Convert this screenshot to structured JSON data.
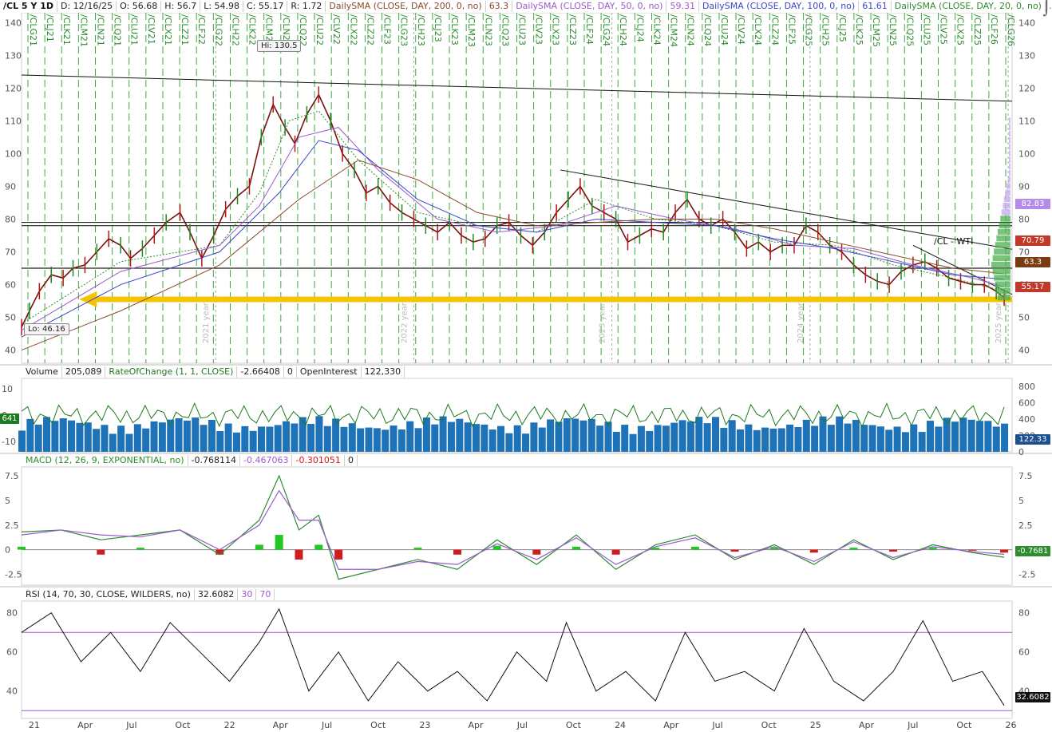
{
  "header": {
    "symbol": "/CL 5 Y 1D",
    "date": "D: 12/16/25",
    "open": "O: 56.68",
    "high": "H: 56.7",
    "low": "L: 54.98",
    "close": "C: 55.17",
    "range": "R: 1.72",
    "sma200_label": "DailySMA (CLOSE, DAY, 200, 0, no)",
    "sma200_value": "63.3",
    "sma50_label": "DailySMA (CLOSE, DAY, 50, 0, no)",
    "sma50_value": "59.31",
    "sma100_label": "DailySMA (CLOSE, DAY, 100, 0, no)",
    "sma100_value": "61.61",
    "sma20_label": "DailySMA (CLOSE, DAY, 20, 0, no)",
    "sma20_value": "...",
    "colors": {
      "sma200": "#8b4a2b",
      "sma50": "#9b59d0",
      "sma100": "#3a47c8",
      "sma20": "#2e8b2e"
    }
  },
  "volume_header": {
    "volume_label": "Volume",
    "volume_value": "205,089",
    "roc_label": "RateOfChange (1, 1, CLOSE)",
    "roc_value": "-2.66408",
    "roc_zero": "0",
    "oi_label": "OpenInterest",
    "oi_value": "122,330"
  },
  "macd_header": {
    "label": "MACD (12, 26, 9, EXPONENTIAL, no)",
    "value": "-0.768114",
    "avg": "-0.467063",
    "diff": "-0.301051",
    "zero": "0"
  },
  "rsi_header": {
    "label": "RSI (14, 70, 30, CLOSE, WILDERS, no)",
    "value": "32.6082",
    "os": "30",
    "ob": "70"
  },
  "annotations": {
    "hi": "Hi: 130.5",
    "lo": "Lo: 46.16",
    "trend_label": "/CL - WTI"
  },
  "price_tags": {
    "p1": "82.83",
    "p2": "70.79",
    "p3": "63.3",
    "p4": "55.17",
    "vol_tag": "122.33",
    "roc_tag": "641",
    "macd_tag": "-0.7681",
    "rsi_tag": "32.6082",
    "colors": {
      "p1": "#b58be8",
      "p2": "#c0392b",
      "p3": "#7a3b12",
      "p4": "#c0392b"
    }
  },
  "chart_data": [
    {
      "type": "line",
      "pane": "price",
      "ylim": [
        36,
        143
      ],
      "yticks": [
        40,
        50,
        60,
        70,
        80,
        90,
        100,
        110,
        120,
        130,
        140
      ],
      "xticks": [
        "21",
        "Apr",
        "Jul",
        "Oct",
        "22",
        "Apr",
        "Jul",
        "Oct",
        "23",
        "Apr",
        "Jul",
        "Oct",
        "24",
        "Apr",
        "Jul",
        "Oct",
        "25",
        "Apr",
        "Jul",
        "Oct",
        "26"
      ],
      "contracts": [
        "/CLG21",
        "/CLJ21",
        "/CLK21",
        "/CLM21",
        "/CLN21",
        "/CLQ21",
        "/CLU21",
        "/CLV21",
        "/CLX21",
        "/CLZ21",
        "/CLF22",
        "/CLG22",
        "/CLH22",
        "/CLK22",
        "/CLM22",
        "/CLN22",
        "/CLQ22",
        "/CLU22",
        "/CLV22",
        "/CLX22",
        "/CLZ22",
        "/CLF23",
        "/CLG23",
        "/CLH23",
        "/CLJ23",
        "/CLK23",
        "/CLM23",
        "/CLN23",
        "/CLQ23",
        "/CLU23",
        "/CLV23",
        "/CLX23",
        "/CLZ23",
        "/CLF24",
        "/CLG24",
        "/CLH24",
        "/CLJ24",
        "/CLK24",
        "/CLM24",
        "/CLN24",
        "/CLQ24",
        "/CLU24",
        "/CLV24",
        "/CLX24",
        "/CLZ24",
        "/CLF25",
        "/CLG25",
        "/CLH25",
        "/CLJ25",
        "/CLK25",
        "/CLM25",
        "/CLN25",
        "/CLQ25",
        "/CLU25",
        "/CLV25",
        "/CLX25",
        "/CLZ25",
        "/CLF26",
        "/CLG26"
      ],
      "year_marks": [
        "2021 year",
        "2022 year",
        "2023 year",
        "2024 year",
        "2025 year"
      ],
      "series": [
        {
          "role": "close",
          "x": [
            0,
            0.04,
            0.09,
            0.15,
            0.21,
            0.26,
            0.32,
            0.38,
            0.44,
            0.5,
            0.55,
            0.61,
            0.67,
            0.73,
            0.8,
            0.85,
            0.91,
            0.97,
            1.03,
            1.09,
            1.15,
            1.21,
            1.27,
            1.33,
            1.38,
            1.44,
            1.5,
            1.56,
            1.62,
            1.68,
            1.74,
            1.8,
            1.86,
            1.92,
            1.98,
            2.04,
            2.1,
            2.16,
            2.22,
            2.28,
            2.34,
            2.4,
            2.46,
            2.52,
            2.58,
            2.64,
            2.7,
            2.76,
            2.82,
            2.88,
            2.94,
            3.0,
            3.06,
            3.12,
            3.18,
            3.24,
            3.3,
            3.36,
            3.42,
            3.48,
            3.54,
            3.6,
            3.66,
            3.72,
            3.78,
            3.84,
            3.9,
            3.96,
            4.02,
            4.08,
            4.14,
            4.2,
            4.26,
            4.32,
            4.38,
            4.44,
            4.5,
            4.56,
            4.62,
            4.68,
            4.74,
            4.8,
            4.86,
            4.92,
            4.96
          ],
          "values": [
            47,
            52,
            58,
            63,
            62,
            65,
            66,
            70,
            74,
            72,
            68,
            71,
            75,
            79,
            82,
            76,
            68,
            75,
            83,
            87,
            90,
            105,
            115,
            108,
            103,
            112,
            118,
            110,
            100,
            95,
            88,
            90,
            85,
            82,
            80,
            78,
            76,
            79,
            75,
            73,
            74,
            78,
            79,
            75,
            72,
            76,
            82,
            86,
            90,
            84,
            82,
            80,
            73,
            75,
            77,
            76,
            82,
            86,
            80,
            78,
            80,
            76,
            71,
            73,
            70,
            72,
            72,
            78,
            76,
            72,
            70,
            66,
            63,
            61,
            60,
            64,
            66,
            67,
            65,
            62,
            61,
            60,
            60,
            58,
            56
          ]
        },
        {
          "role": "sma20",
          "x": [
            0,
            0.5,
            1.0,
            1.2,
            1.35,
            1.5,
            1.7,
            2.0,
            2.3,
            2.6,
            2.9,
            3.2,
            3.5,
            3.8,
            4.1,
            4.4,
            4.7,
            4.96
          ],
          "values": [
            48,
            67,
            72,
            88,
            110,
            113,
            98,
            82,
            78,
            76,
            86,
            80,
            78,
            73,
            72,
            66,
            62,
            58
          ]
        },
        {
          "role": "sma50",
          "x": [
            0,
            0.5,
            1.0,
            1.2,
            1.4,
            1.6,
            1.8,
            2.1,
            2.4,
            2.7,
            3.0,
            3.3,
            3.6,
            3.9,
            4.2,
            4.5,
            4.8,
            4.96
          ],
          "values": [
            46,
            64,
            72,
            84,
            105,
            108,
            95,
            80,
            76,
            78,
            84,
            80,
            77,
            72,
            71,
            66,
            62,
            59.31
          ]
        },
        {
          "role": "sma100",
          "x": [
            0,
            0.5,
            1.0,
            1.3,
            1.5,
            1.7,
            2.0,
            2.3,
            2.6,
            2.9,
            3.2,
            3.5,
            3.8,
            4.1,
            4.4,
            4.7,
            4.96
          ],
          "values": [
            44,
            60,
            70,
            88,
            104,
            101,
            86,
            78,
            76,
            80,
            79,
            78,
            74,
            71,
            67,
            63,
            61.61
          ]
        },
        {
          "role": "sma200",
          "x": [
            0,
            0.5,
            1.0,
            1.4,
            1.7,
            2.0,
            2.3,
            2.6,
            2.9,
            3.2,
            3.5,
            3.8,
            4.1,
            4.4,
            4.7,
            4.96
          ],
          "values": [
            40,
            52,
            66,
            86,
            98,
            92,
            82,
            78,
            79,
            80,
            80,
            77,
            73,
            69,
            65,
            63.3
          ]
        }
      ],
      "lines": [
        {
          "role": "long-trendline",
          "from": [
            0,
            124
          ],
          "to": [
            5.0,
            116
          ]
        },
        {
          "role": "trendline",
          "from": [
            2.72,
            95
          ],
          "to": [
            5.0,
            70.79
          ]
        },
        {
          "role": "trendline",
          "from": [
            4.5,
            72
          ],
          "to": [
            5.0,
            57
          ]
        },
        {
          "role": "resistance",
          "value": 78
        },
        {
          "role": "resistance",
          "value": 79
        },
        {
          "role": "support",
          "value": 65
        },
        {
          "role": "support-highlight",
          "value": 55.5,
          "color": "#f5c400"
        }
      ]
    },
    {
      "type": "bar",
      "pane": "volume",
      "ylim": [
        0,
        900
      ],
      "yticks_right": [
        0,
        200,
        400,
        600,
        800
      ],
      "yticks_left": [
        -10,
        0,
        10
      ],
      "roc_range": [
        -14,
        14
      ],
      "volume_color": "#1d72b8",
      "roc_color": "#1e7a1e"
    },
    {
      "type": "line",
      "pane": "macd",
      "ylim": [
        -3.6,
        8.4
      ],
      "yticks": [
        -2.5,
        0,
        2.5,
        5,
        7.5
      ],
      "series": [
        {
          "name": "MACD",
          "x": [
            0,
            0.2,
            0.4,
            0.6,
            0.8,
            1.0,
            1.2,
            1.3,
            1.4,
            1.5,
            1.6,
            1.8,
            2.0,
            2.2,
            2.4,
            2.6,
            2.8,
            3.0,
            3.2,
            3.4,
            3.6,
            3.8,
            4.0,
            4.2,
            4.4,
            4.6,
            4.8,
            4.96
          ],
          "values": [
            1.8,
            2,
            1,
            1.5,
            2,
            -0.5,
            3,
            7.5,
            2,
            3.5,
            -3,
            -2,
            -1,
            -2,
            1,
            -1.5,
            1.5,
            -2,
            0.5,
            1.5,
            -1,
            0.5,
            -1.5,
            1,
            -1,
            0.5,
            -0.3,
            -0.77
          ]
        },
        {
          "name": "Avg",
          "x": [
            0,
            0.2,
            0.4,
            0.6,
            0.8,
            1.0,
            1.2,
            1.3,
            1.4,
            1.5,
            1.6,
            1.8,
            2.0,
            2.2,
            2.4,
            2.6,
            2.8,
            3.0,
            3.2,
            3.4,
            3.6,
            3.8,
            4.0,
            4.2,
            4.4,
            4.6,
            4.8,
            4.96
          ],
          "values": [
            1.5,
            2,
            1.5,
            1.3,
            2,
            0,
            2.5,
            6,
            3,
            3,
            -2,
            -2,
            -1.2,
            -1.5,
            0.6,
            -1,
            1.2,
            -1.5,
            0.3,
            1.2,
            -0.8,
            0.3,
            -1.2,
            0.8,
            -0.8,
            0.3,
            -0.2,
            -0.47
          ]
        }
      ],
      "hist_pos_color": "#22c722",
      "hist_neg_color": "#d01c1c"
    },
    {
      "type": "line",
      "pane": "rsi",
      "ylim": [
        26,
        86
      ],
      "yticks": [
        40,
        60,
        80
      ],
      "levels": [
        30,
        70
      ],
      "series": [
        {
          "name": "RSI",
          "x": [
            0,
            0.15,
            0.3,
            0.45,
            0.6,
            0.75,
            0.9,
            1.05,
            1.2,
            1.3,
            1.45,
            1.6,
            1.75,
            1.9,
            2.05,
            2.2,
            2.35,
            2.5,
            2.65,
            2.75,
            2.9,
            3.05,
            3.2,
            3.35,
            3.5,
            3.65,
            3.8,
            3.95,
            4.1,
            4.25,
            4.4,
            4.55,
            4.7,
            4.85,
            4.96
          ],
          "values": [
            70,
            80,
            55,
            70,
            50,
            75,
            60,
            45,
            65,
            82,
            40,
            60,
            35,
            55,
            40,
            50,
            35,
            60,
            45,
            75,
            40,
            50,
            35,
            70,
            45,
            50,
            40,
            72,
            45,
            35,
            50,
            76,
            45,
            50,
            32.6
          ]
        }
      ]
    }
  ]
}
